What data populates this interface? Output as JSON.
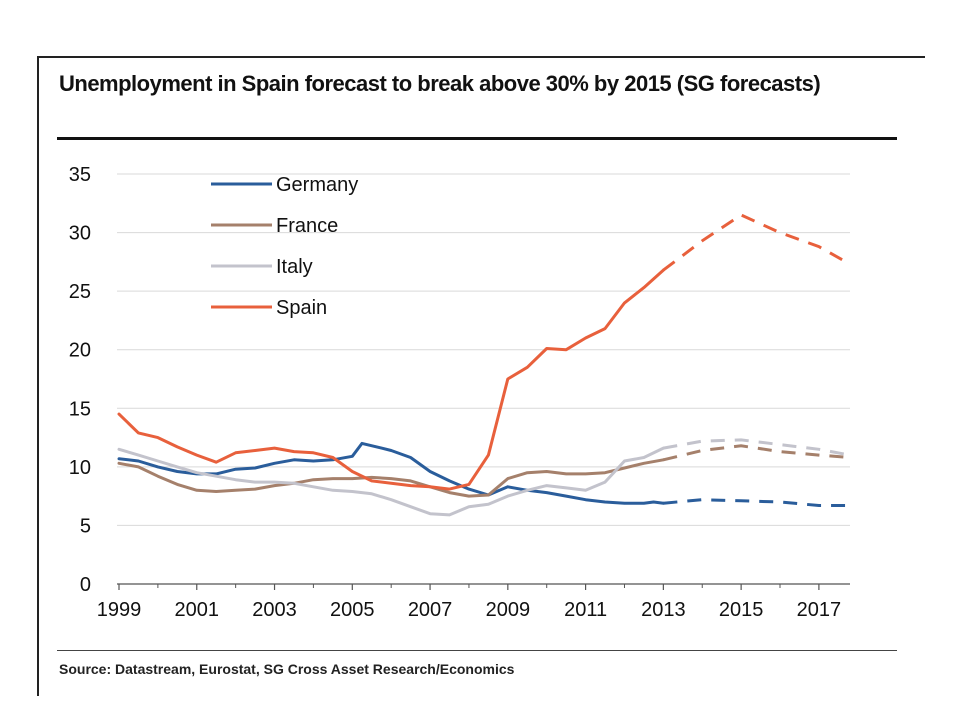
{
  "chart_data": {
    "type": "line",
    "title": "Unemployment in Spain forecast to break above 30% by 2015 (SG forecasts)",
    "source": "Source: Datastream, Eurostat, SG Cross Asset Research/Economics",
    "xlim": [
      1999,
      2017.8
    ],
    "ylim": [
      0,
      35
    ],
    "x_ticks": [
      "1999",
      "2001",
      "2003",
      "2005",
      "2007",
      "2009",
      "2011",
      "2013",
      "2015",
      "2017"
    ],
    "y_ticks": [
      "0",
      "5",
      "10",
      "15",
      "20",
      "25",
      "30",
      "35"
    ],
    "grid": "horizontal",
    "legend_position": "top-left",
    "forecast_start": 2013,
    "series": [
      {
        "name": "Germany",
        "color": "#2a5d9b",
        "points": [
          [
            1999,
            10.7
          ],
          [
            1999.5,
            10.5
          ],
          [
            2000,
            10.0
          ],
          [
            2000.5,
            9.6
          ],
          [
            2001,
            9.4
          ],
          [
            2001.5,
            9.4
          ],
          [
            2002,
            9.8
          ],
          [
            2002.5,
            9.9
          ],
          [
            2003,
            10.3
          ],
          [
            2003.5,
            10.6
          ],
          [
            2004,
            10.5
          ],
          [
            2004.5,
            10.6
          ],
          [
            2005,
            10.9
          ],
          [
            2005.25,
            12.0
          ],
          [
            2005.75,
            11.6
          ],
          [
            2006,
            11.4
          ],
          [
            2006.5,
            10.8
          ],
          [
            2007,
            9.6
          ],
          [
            2007.5,
            8.8
          ],
          [
            2008,
            8.1
          ],
          [
            2008.5,
            7.6
          ],
          [
            2009,
            8.3
          ],
          [
            2009.5,
            8.0
          ],
          [
            2010,
            7.8
          ],
          [
            2010.5,
            7.5
          ],
          [
            2011,
            7.2
          ],
          [
            2011.5,
            7.0
          ],
          [
            2012,
            6.9
          ],
          [
            2012.5,
            6.9
          ],
          [
            2012.75,
            7.0
          ],
          [
            2013,
            6.9
          ]
        ],
        "forecast": [
          [
            2013,
            6.9
          ],
          [
            2014,
            7.2
          ],
          [
            2015,
            7.1
          ],
          [
            2016,
            7.0
          ],
          [
            2017,
            6.7
          ],
          [
            2017.8,
            6.7
          ]
        ]
      },
      {
        "name": "France",
        "color": "#a5806b",
        "points": [
          [
            1999,
            10.3
          ],
          [
            1999.5,
            10.0
          ],
          [
            2000,
            9.2
          ],
          [
            2000.5,
            8.5
          ],
          [
            2001,
            8.0
          ],
          [
            2001.5,
            7.9
          ],
          [
            2002,
            8.0
          ],
          [
            2002.5,
            8.1
          ],
          [
            2003,
            8.4
          ],
          [
            2003.5,
            8.6
          ],
          [
            2004,
            8.9
          ],
          [
            2004.5,
            9.0
          ],
          [
            2005,
            9.0
          ],
          [
            2005.5,
            9.1
          ],
          [
            2006,
            9.0
          ],
          [
            2006.5,
            8.8
          ],
          [
            2007,
            8.3
          ],
          [
            2007.5,
            7.8
          ],
          [
            2008,
            7.5
          ],
          [
            2008.5,
            7.6
          ],
          [
            2009,
            9.0
          ],
          [
            2009.5,
            9.5
          ],
          [
            2010,
            9.6
          ],
          [
            2010.5,
            9.4
          ],
          [
            2011,
            9.4
          ],
          [
            2011.5,
            9.5
          ],
          [
            2012,
            9.9
          ],
          [
            2012.5,
            10.3
          ],
          [
            2013,
            10.6
          ]
        ],
        "forecast": [
          [
            2013,
            10.6
          ],
          [
            2014,
            11.4
          ],
          [
            2015,
            11.8
          ],
          [
            2016,
            11.3
          ],
          [
            2017,
            11.0
          ],
          [
            2017.8,
            10.8
          ]
        ]
      },
      {
        "name": "Italy",
        "color": "#c3c3cc",
        "points": [
          [
            1999,
            11.5
          ],
          [
            1999.5,
            11.0
          ],
          [
            2000,
            10.5
          ],
          [
            2000.5,
            10.0
          ],
          [
            2001,
            9.5
          ],
          [
            2001.5,
            9.2
          ],
          [
            2002,
            8.9
          ],
          [
            2002.5,
            8.7
          ],
          [
            2003,
            8.7
          ],
          [
            2003.5,
            8.6
          ],
          [
            2004,
            8.3
          ],
          [
            2004.5,
            8.0
          ],
          [
            2005,
            7.9
          ],
          [
            2005.5,
            7.7
          ],
          [
            2006,
            7.2
          ],
          [
            2006.5,
            6.6
          ],
          [
            2007,
            6.0
          ],
          [
            2007.5,
            5.9
          ],
          [
            2008,
            6.6
          ],
          [
            2008.5,
            6.8
          ],
          [
            2009,
            7.5
          ],
          [
            2009.5,
            8.0
          ],
          [
            2010,
            8.4
          ],
          [
            2010.5,
            8.2
          ],
          [
            2011,
            8.0
          ],
          [
            2011.5,
            8.7
          ],
          [
            2012,
            10.5
          ],
          [
            2012.5,
            10.8
          ],
          [
            2013,
            11.6
          ]
        ],
        "forecast": [
          [
            2013,
            11.6
          ],
          [
            2014,
            12.2
          ],
          [
            2015,
            12.3
          ],
          [
            2016,
            11.9
          ],
          [
            2017,
            11.5
          ],
          [
            2017.8,
            11.0
          ]
        ]
      },
      {
        "name": "Spain",
        "color": "#e8603c",
        "points": [
          [
            1999,
            14.5
          ],
          [
            1999.5,
            12.9
          ],
          [
            2000,
            12.5
          ],
          [
            2000.5,
            11.7
          ],
          [
            2001,
            11.0
          ],
          [
            2001.5,
            10.4
          ],
          [
            2002,
            11.2
          ],
          [
            2002.5,
            11.4
          ],
          [
            2003,
            11.6
          ],
          [
            2003.5,
            11.3
          ],
          [
            2004,
            11.2
          ],
          [
            2004.5,
            10.8
          ],
          [
            2005,
            9.6
          ],
          [
            2005.5,
            8.8
          ],
          [
            2006,
            8.6
          ],
          [
            2006.5,
            8.4
          ],
          [
            2007,
            8.3
          ],
          [
            2007.5,
            8.1
          ],
          [
            2008,
            8.5
          ],
          [
            2008.5,
            11.0
          ],
          [
            2009,
            17.5
          ],
          [
            2009.5,
            18.5
          ],
          [
            2010,
            20.1
          ],
          [
            2010.5,
            20.0
          ],
          [
            2011,
            21.0
          ],
          [
            2011.5,
            21.8
          ],
          [
            2012,
            24.0
          ],
          [
            2012.5,
            25.3
          ],
          [
            2013,
            26.8
          ]
        ],
        "forecast": [
          [
            2013,
            26.8
          ],
          [
            2014,
            29.3
          ],
          [
            2015,
            31.5
          ],
          [
            2016,
            30.0
          ],
          [
            2017,
            28.8
          ],
          [
            2017.8,
            27.3
          ]
        ]
      }
    ]
  }
}
